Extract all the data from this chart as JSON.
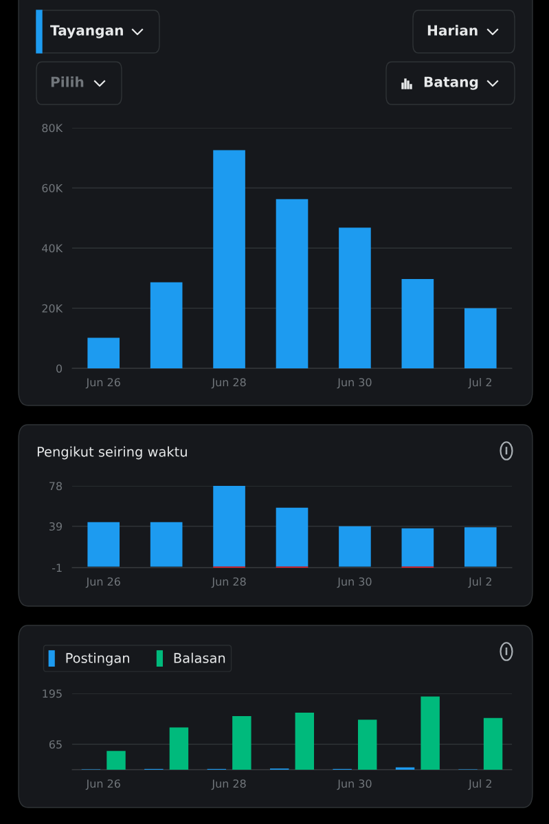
{
  "chart_data": [
    {
      "type": "bar",
      "annotations": [
        "Tayangan",
        "Harian",
        "Pilih",
        "Batang"
      ],
      "categories": [
        "Jun 26",
        null,
        "Jun 28",
        null,
        "Jun 30",
        null,
        "Jul 2"
      ],
      "series": [
        {
          "color": "#1d9bf0",
          "values": [
            10200,
            28600,
            72600,
            56300,
            46800,
            29700,
            20000
          ]
        }
      ],
      "ylim": [
        0,
        80000
      ],
      "yticks": [
        {
          "value": 0,
          "label": "0"
        },
        {
          "value": 20000,
          "label": "20K"
        },
        {
          "value": 40000,
          "label": "40K"
        },
        {
          "value": 60000,
          "label": "60K"
        },
        {
          "value": 80000,
          "label": "80K"
        }
      ],
      "grid": "y"
    },
    {
      "type": "bar",
      "title": "Pengikut seiring waktu",
      "stacked": true,
      "categories": [
        "Jun 26",
        null,
        "Jun 28",
        null,
        "Jun 30",
        null,
        "Jul 2"
      ],
      "series": [
        {
          "color": "#1d9bf0",
          "values": [
            43,
            43,
            78,
            57,
            39,
            37,
            38
          ]
        },
        {
          "color": "#f4212e",
          "values": [
            null,
            null,
            -1,
            -1,
            null,
            -1,
            null
          ]
        }
      ],
      "ylim": [
        -1,
        78
      ],
      "yticks": [
        -1,
        39,
        78
      ],
      "grid": "y"
    },
    {
      "type": "bar",
      "legend": "top left",
      "categories": [
        "Jun 26",
        null,
        "Jun 28",
        null,
        "Jun 30",
        null,
        "Jul 2"
      ],
      "series": [
        {
          "name": "Postingan",
          "color": "#1d9bf0",
          "values": [
            1,
            2,
            2,
            3,
            2,
            6,
            1
          ]
        },
        {
          "name": "Balasan",
          "color": "#00ba7c",
          "values": [
            48,
            108,
            137,
            146,
            128,
            187,
            132
          ]
        }
      ],
      "ylim": [
        0,
        195
      ],
      "yticks": [
        {
          "value": 0,
          "label": null
        },
        65,
        195
      ],
      "grid": "y"
    }
  ]
}
